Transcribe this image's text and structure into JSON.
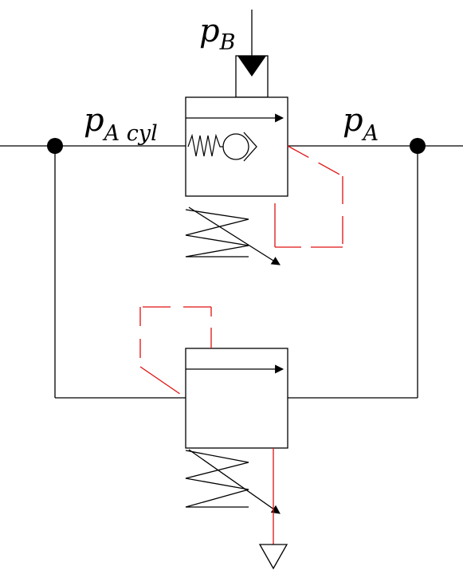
{
  "labels": {
    "p_b": {
      "main": "p",
      "sub": "B"
    },
    "p_a_cyl": {
      "main": "p",
      "sub": "A cyl"
    },
    "p_a": {
      "main": "p",
      "sub": "A"
    }
  },
  "colors": {
    "line": "#000000",
    "pilot": "#e01010",
    "background": "#ffffff"
  }
}
